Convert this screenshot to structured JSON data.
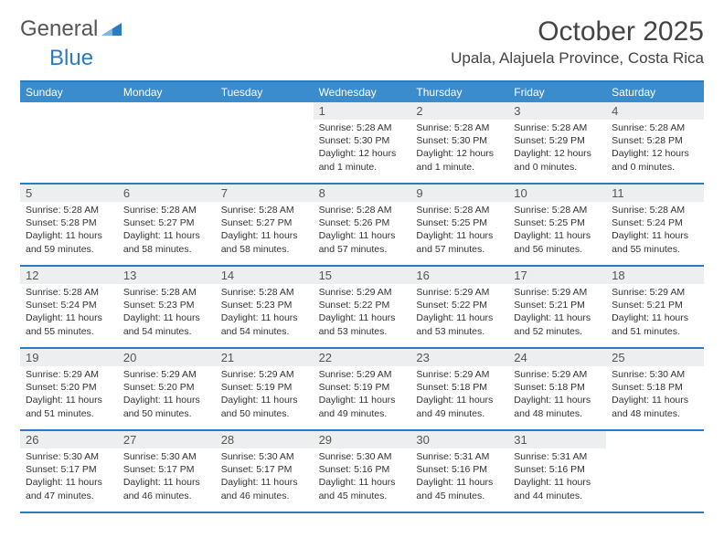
{
  "brand": {
    "part1": "General",
    "part2": "Blue"
  },
  "title": "October 2025",
  "location": "Upala, Alajuela Province, Costa Rica",
  "colors": {
    "accent": "#2c7bc0",
    "header_blue": "#3a8ccc",
    "daynum_bg": "#eceeef",
    "text": "#333333",
    "bg": "#ffffff"
  },
  "typography": {
    "title_fontsize": 30,
    "location_fontsize": 17,
    "dayhead_fontsize": 12,
    "body_fontsize": 10.5
  },
  "dayheads": [
    "Sunday",
    "Monday",
    "Tuesday",
    "Wednesday",
    "Thursday",
    "Friday",
    "Saturday"
  ],
  "weeks": [
    [
      {
        "blank": true
      },
      {
        "blank": true
      },
      {
        "blank": true
      },
      {
        "n": "1",
        "sr": "Sunrise: 5:28 AM",
        "ss": "Sunset: 5:30 PM",
        "dl1": "Daylight: 12 hours",
        "dl2": "and 1 minute."
      },
      {
        "n": "2",
        "sr": "Sunrise: 5:28 AM",
        "ss": "Sunset: 5:30 PM",
        "dl1": "Daylight: 12 hours",
        "dl2": "and 1 minute."
      },
      {
        "n": "3",
        "sr": "Sunrise: 5:28 AM",
        "ss": "Sunset: 5:29 PM",
        "dl1": "Daylight: 12 hours",
        "dl2": "and 0 minutes."
      },
      {
        "n": "4",
        "sr": "Sunrise: 5:28 AM",
        "ss": "Sunset: 5:28 PM",
        "dl1": "Daylight: 12 hours",
        "dl2": "and 0 minutes."
      }
    ],
    [
      {
        "n": "5",
        "sr": "Sunrise: 5:28 AM",
        "ss": "Sunset: 5:28 PM",
        "dl1": "Daylight: 11 hours",
        "dl2": "and 59 minutes."
      },
      {
        "n": "6",
        "sr": "Sunrise: 5:28 AM",
        "ss": "Sunset: 5:27 PM",
        "dl1": "Daylight: 11 hours",
        "dl2": "and 58 minutes."
      },
      {
        "n": "7",
        "sr": "Sunrise: 5:28 AM",
        "ss": "Sunset: 5:27 PM",
        "dl1": "Daylight: 11 hours",
        "dl2": "and 58 minutes."
      },
      {
        "n": "8",
        "sr": "Sunrise: 5:28 AM",
        "ss": "Sunset: 5:26 PM",
        "dl1": "Daylight: 11 hours",
        "dl2": "and 57 minutes."
      },
      {
        "n": "9",
        "sr": "Sunrise: 5:28 AM",
        "ss": "Sunset: 5:25 PM",
        "dl1": "Daylight: 11 hours",
        "dl2": "and 57 minutes."
      },
      {
        "n": "10",
        "sr": "Sunrise: 5:28 AM",
        "ss": "Sunset: 5:25 PM",
        "dl1": "Daylight: 11 hours",
        "dl2": "and 56 minutes."
      },
      {
        "n": "11",
        "sr": "Sunrise: 5:28 AM",
        "ss": "Sunset: 5:24 PM",
        "dl1": "Daylight: 11 hours",
        "dl2": "and 55 minutes."
      }
    ],
    [
      {
        "n": "12",
        "sr": "Sunrise: 5:28 AM",
        "ss": "Sunset: 5:24 PM",
        "dl1": "Daylight: 11 hours",
        "dl2": "and 55 minutes."
      },
      {
        "n": "13",
        "sr": "Sunrise: 5:28 AM",
        "ss": "Sunset: 5:23 PM",
        "dl1": "Daylight: 11 hours",
        "dl2": "and 54 minutes."
      },
      {
        "n": "14",
        "sr": "Sunrise: 5:28 AM",
        "ss": "Sunset: 5:23 PM",
        "dl1": "Daylight: 11 hours",
        "dl2": "and 54 minutes."
      },
      {
        "n": "15",
        "sr": "Sunrise: 5:29 AM",
        "ss": "Sunset: 5:22 PM",
        "dl1": "Daylight: 11 hours",
        "dl2": "and 53 minutes."
      },
      {
        "n": "16",
        "sr": "Sunrise: 5:29 AM",
        "ss": "Sunset: 5:22 PM",
        "dl1": "Daylight: 11 hours",
        "dl2": "and 53 minutes."
      },
      {
        "n": "17",
        "sr": "Sunrise: 5:29 AM",
        "ss": "Sunset: 5:21 PM",
        "dl1": "Daylight: 11 hours",
        "dl2": "and 52 minutes."
      },
      {
        "n": "18",
        "sr": "Sunrise: 5:29 AM",
        "ss": "Sunset: 5:21 PM",
        "dl1": "Daylight: 11 hours",
        "dl2": "and 51 minutes."
      }
    ],
    [
      {
        "n": "19",
        "sr": "Sunrise: 5:29 AM",
        "ss": "Sunset: 5:20 PM",
        "dl1": "Daylight: 11 hours",
        "dl2": "and 51 minutes."
      },
      {
        "n": "20",
        "sr": "Sunrise: 5:29 AM",
        "ss": "Sunset: 5:20 PM",
        "dl1": "Daylight: 11 hours",
        "dl2": "and 50 minutes."
      },
      {
        "n": "21",
        "sr": "Sunrise: 5:29 AM",
        "ss": "Sunset: 5:19 PM",
        "dl1": "Daylight: 11 hours",
        "dl2": "and 50 minutes."
      },
      {
        "n": "22",
        "sr": "Sunrise: 5:29 AM",
        "ss": "Sunset: 5:19 PM",
        "dl1": "Daylight: 11 hours",
        "dl2": "and 49 minutes."
      },
      {
        "n": "23",
        "sr": "Sunrise: 5:29 AM",
        "ss": "Sunset: 5:18 PM",
        "dl1": "Daylight: 11 hours",
        "dl2": "and 49 minutes."
      },
      {
        "n": "24",
        "sr": "Sunrise: 5:29 AM",
        "ss": "Sunset: 5:18 PM",
        "dl1": "Daylight: 11 hours",
        "dl2": "and 48 minutes."
      },
      {
        "n": "25",
        "sr": "Sunrise: 5:30 AM",
        "ss": "Sunset: 5:18 PM",
        "dl1": "Daylight: 11 hours",
        "dl2": "and 48 minutes."
      }
    ],
    [
      {
        "n": "26",
        "sr": "Sunrise: 5:30 AM",
        "ss": "Sunset: 5:17 PM",
        "dl1": "Daylight: 11 hours",
        "dl2": "and 47 minutes."
      },
      {
        "n": "27",
        "sr": "Sunrise: 5:30 AM",
        "ss": "Sunset: 5:17 PM",
        "dl1": "Daylight: 11 hours",
        "dl2": "and 46 minutes."
      },
      {
        "n": "28",
        "sr": "Sunrise: 5:30 AM",
        "ss": "Sunset: 5:17 PM",
        "dl1": "Daylight: 11 hours",
        "dl2": "and 46 minutes."
      },
      {
        "n": "29",
        "sr": "Sunrise: 5:30 AM",
        "ss": "Sunset: 5:16 PM",
        "dl1": "Daylight: 11 hours",
        "dl2": "and 45 minutes."
      },
      {
        "n": "30",
        "sr": "Sunrise: 5:31 AM",
        "ss": "Sunset: 5:16 PM",
        "dl1": "Daylight: 11 hours",
        "dl2": "and 45 minutes."
      },
      {
        "n": "31",
        "sr": "Sunrise: 5:31 AM",
        "ss": "Sunset: 5:16 PM",
        "dl1": "Daylight: 11 hours",
        "dl2": "and 44 minutes."
      },
      {
        "blank": true
      }
    ]
  ]
}
